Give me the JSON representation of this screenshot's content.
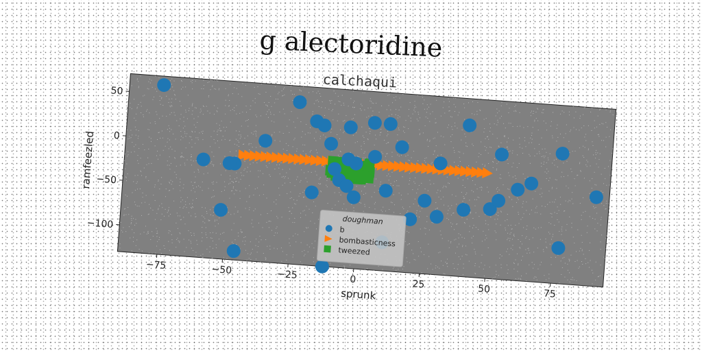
{
  "chart_data": {
    "type": "scatter",
    "title": "g alectoridine",
    "subtitle": "calchaqui",
    "xlabel": "sprunk",
    "ylabel": "ramfeezled",
    "xlim": [
      -90,
      95
    ],
    "ylim": [
      -130,
      70
    ],
    "xticks": [
      -75,
      -50,
      -25,
      0,
      25,
      50,
      75
    ],
    "yticks": [
      50,
      0,
      -50,
      -100
    ],
    "grid": false,
    "legend": {
      "title": "doughman",
      "placement": "lower-center"
    },
    "series": [
      {
        "name": "b",
        "marker": "circle",
        "color": "#1f77b4",
        "points": [
          [
            -77,
            60
          ],
          [
            -25,
            52
          ],
          [
            -18,
            32
          ],
          [
            -15,
            28
          ],
          [
            -12,
            8
          ],
          [
            -5,
            28
          ],
          [
            4,
            35
          ],
          [
            10,
            35
          ],
          [
            40,
            40
          ],
          [
            15,
            10
          ],
          [
            53,
            10
          ],
          [
            76,
            16
          ],
          [
            -37,
            6
          ],
          [
            -5,
            -8
          ],
          [
            -2,
            -12
          ],
          [
            5,
            -3
          ],
          [
            30,
            -5
          ],
          [
            -60,
            -20
          ],
          [
            -48,
            -22
          ],
          [
            -50,
            -22
          ],
          [
            -10,
            -20
          ],
          [
            -8,
            -32
          ],
          [
            -5,
            -38
          ],
          [
            -18,
            -48
          ],
          [
            -2,
            -50
          ],
          [
            10,
            -40
          ],
          [
            25,
            -48
          ],
          [
            40,
            -55
          ],
          [
            50,
            -52
          ],
          [
            53,
            -42
          ],
          [
            60,
            -28
          ],
          [
            65,
            -20
          ],
          [
            90,
            -30
          ],
          [
            -52,
            -75
          ],
          [
            20,
            -70
          ],
          [
            30,
            -65
          ],
          [
            77,
            -90
          ],
          [
            -46,
            -120
          ],
          [
            -12,
            -130
          ],
          [
            10,
            -98
          ]
        ]
      },
      {
        "name": "bombasticness",
        "marker": "triangle-right",
        "color": "#ff7f0e",
        "x_range": [
          -45,
          48
        ],
        "y": -12,
        "count": 45
      },
      {
        "name": "tweezed",
        "marker": "square",
        "color": "#2ca02c",
        "x_range": [
          -12,
          4
        ],
        "y_range": [
          -30,
          -10
        ],
        "count": 50
      }
    ]
  }
}
